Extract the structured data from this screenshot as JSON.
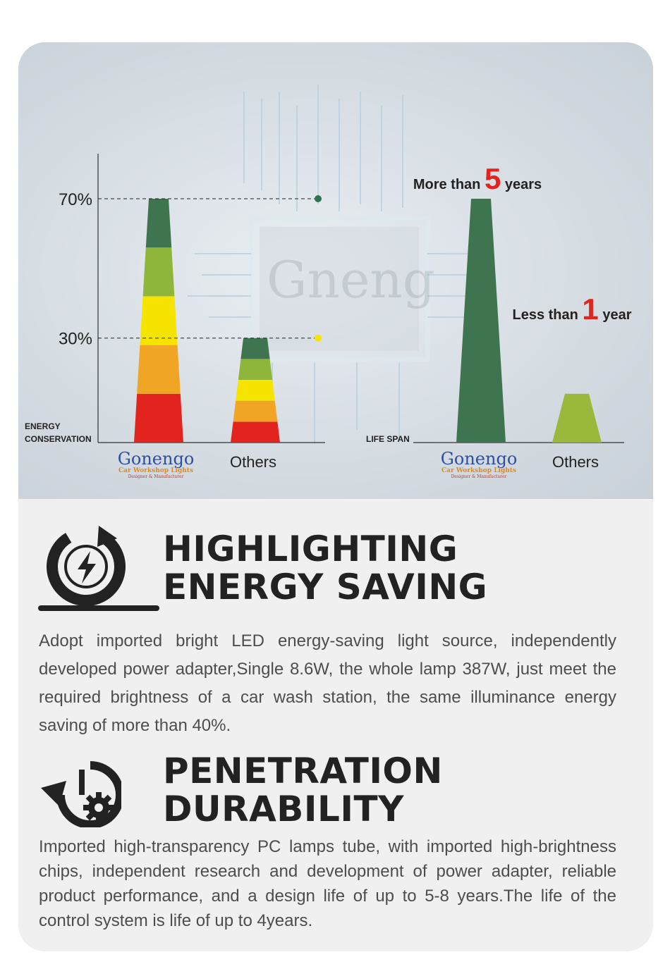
{
  "chart_data": [
    {
      "type": "bar",
      "title": "",
      "ylabel": "ENERGY CONSERVATION",
      "categories": [
        "Gonengo",
        "Others"
      ],
      "values": [
        70,
        30
      ],
      "unit": "%",
      "ticks": [
        "70%",
        "30%"
      ],
      "ylim": [
        0,
        85
      ],
      "segment_colors": [
        "#e3231e",
        "#f0a524",
        "#f4e400",
        "#8fb63a",
        "#3e7450"
      ],
      "marker_colors": [
        "#2e7350",
        "#f4e400"
      ]
    },
    {
      "type": "bar",
      "title": "",
      "ylabel": "LIFE SPAN",
      "categories": [
        "Gonengo",
        "Others"
      ],
      "values": [
        5,
        1
      ],
      "unit": "years",
      "colors": [
        "#3e7450",
        "#9ab93a"
      ],
      "accent": "#e3231e",
      "annotations": [
        {
          "pre": "More than",
          "num": "5",
          "post": "years"
        },
        {
          "pre": "Less than",
          "num": "1",
          "post": "year"
        }
      ]
    }
  ],
  "logo": {
    "word": "Gonengo",
    "line1": "Car Workshop Lights",
    "line2": "Designer & Manufacturer"
  },
  "watermark": "Gneng",
  "sections": [
    {
      "icon": "energy-saving-icon",
      "title_line1": "HIGHLIGHTING",
      "title_line2": "ENERGY SAVING",
      "text": "Adopt imported bright LED energy-saving light source, independently developed power adapter,Single 8.6W, the whole lamp 387W, just meet the required brightness of a car wash station, the same illuminance energy saving of more than 40%."
    },
    {
      "icon": "durability-clock-gear-icon",
      "title_line1": "PENETRATION",
      "title_line2": "DURABILITY",
      "text": "Imported high-transparency PC lamps tube, with imported high-brightness chips, independent research  and development of power adapter, reliable product performance, and a design life of up to 5-8 years.The life of the control system is life of up to 4years."
    }
  ]
}
